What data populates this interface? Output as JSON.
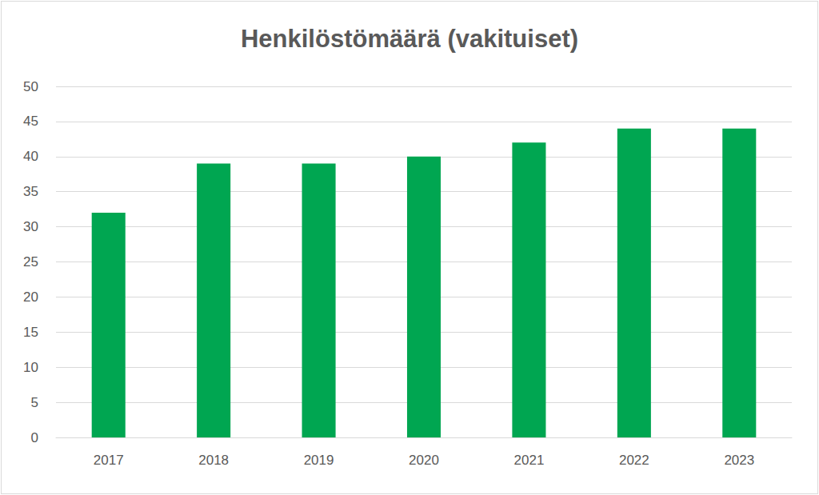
{
  "chart_data": {
    "type": "bar",
    "title": "Henkilöstömäärä (vakituiset)",
    "categories": [
      "2017",
      "2018",
      "2019",
      "2020",
      "2021",
      "2022",
      "2023"
    ],
    "values": [
      32,
      39,
      39,
      40,
      42,
      44,
      44
    ],
    "color": "#00a651",
    "ylim": [
      0,
      50
    ],
    "yticks": [
      0,
      5,
      10,
      15,
      20,
      25,
      30,
      35,
      40,
      45,
      50
    ],
    "grid": true
  }
}
